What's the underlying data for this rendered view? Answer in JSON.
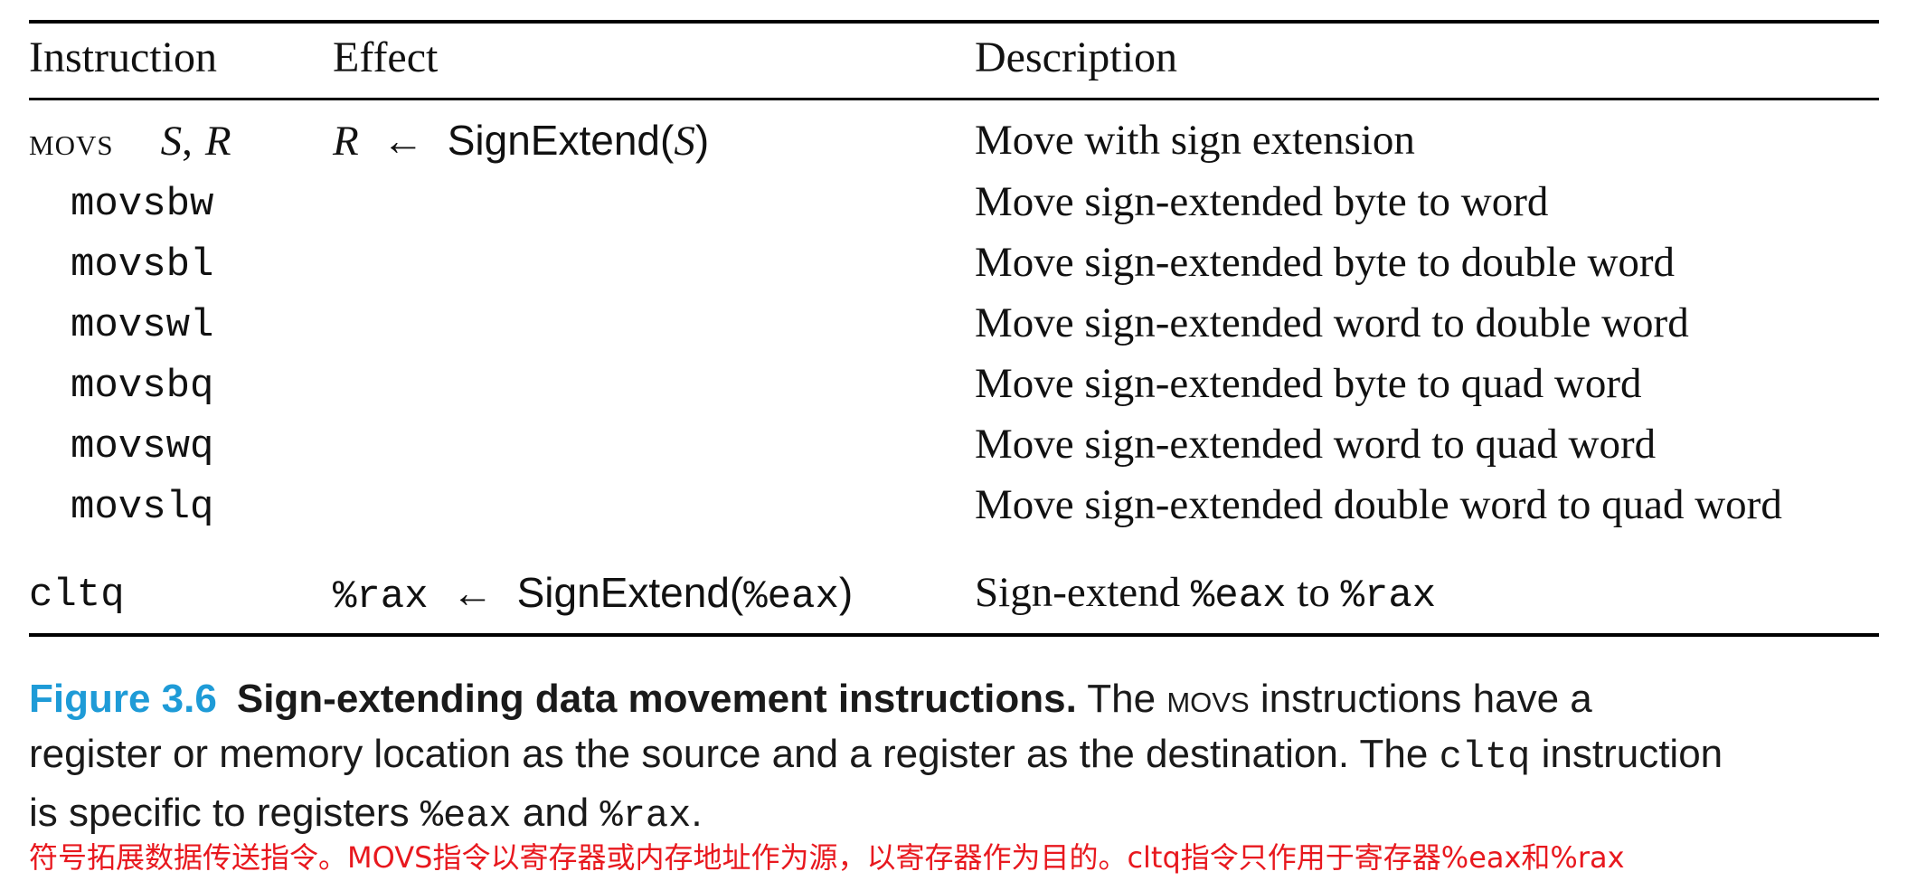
{
  "header": {
    "instruction": "Instruction",
    "effect": "Effect",
    "description": "Description"
  },
  "movs_row": {
    "mnemonic": "movs",
    "operand_s": "S",
    "comma": ",",
    "operand_r": "R",
    "effect_dest": "R",
    "arrow": "←",
    "effect_func": "SignExtend(",
    "effect_arg": "S",
    "effect_close": ")",
    "description": "Move with sign extension"
  },
  "variants": [
    {
      "name": "movsbw",
      "description": "Move sign-extended byte to word"
    },
    {
      "name": "movsbl",
      "description": "Move sign-extended byte to double word"
    },
    {
      "name": "movswl",
      "description": "Move sign-extended word to double word"
    },
    {
      "name": "movsbq",
      "description": "Move sign-extended byte to quad word"
    },
    {
      "name": "movswq",
      "description": "Move sign-extended word to quad word"
    },
    {
      "name": "movslq",
      "description": "Move sign-extended double word to quad word"
    }
  ],
  "cltq_row": {
    "instruction": "cltq",
    "effect_dest": "%rax",
    "arrow": "←",
    "effect_func_open": "SignExtend(",
    "effect_arg": "%eax",
    "effect_close": ")",
    "desc_prefix": "Sign-extend ",
    "desc_reg1": "%eax",
    "desc_mid": " to ",
    "desc_reg2": "%rax"
  },
  "caption": {
    "label": "Figure 3.6",
    "title": "Sign-extending data movement instructions.",
    "t1": " The ",
    "movs": "movs",
    "t2": " instructions have a register or memory location as the source and a register as the destination. The ",
    "cltq": "cltq",
    "t3": " instruction is specific to registers ",
    "eax": "%eax",
    "t4": " and ",
    "rax": "%rax",
    "t5": "."
  },
  "annotation": "符号拓展数据传送指令。MOVS指令以寄存器或内存地址作为源，以寄存器作为目的。cltq指令只作用于寄存器%eax和%rax",
  "colors": {
    "figure_label": "#1e9bd7",
    "annotation": "#e8181e",
    "rules": "#000000"
  }
}
